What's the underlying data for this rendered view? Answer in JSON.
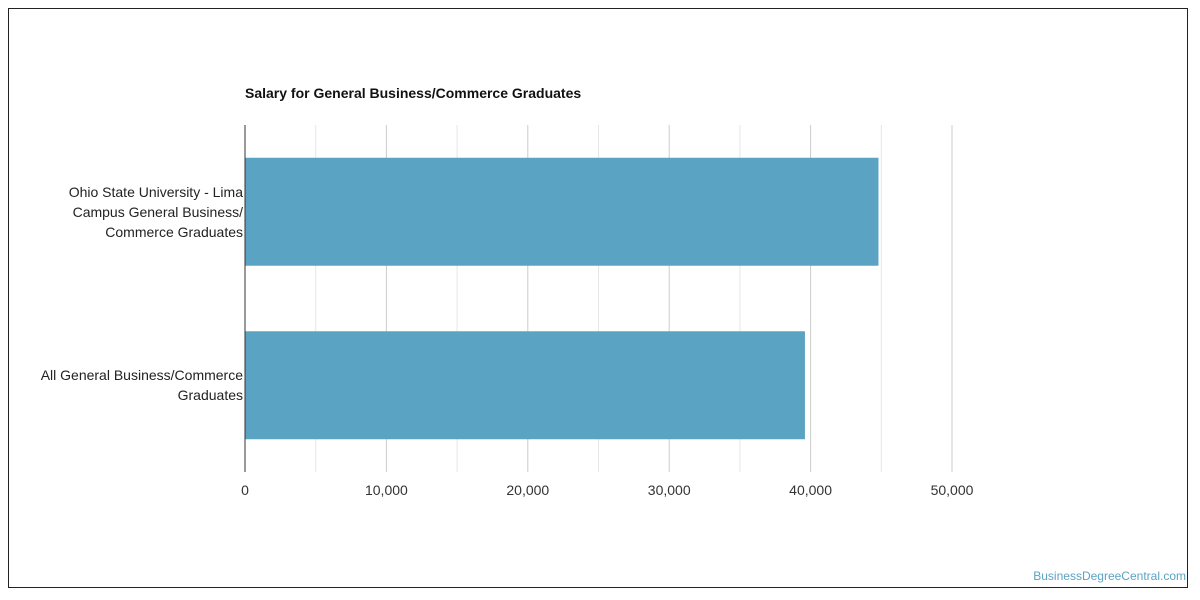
{
  "chart_data": {
    "type": "bar",
    "orientation": "horizontal",
    "title": "Salary for General Business/Commerce Graduates",
    "categories": [
      [
        "Ohio State University - Lima",
        "Campus General Business/",
        "Commerce Graduates"
      ],
      [
        "All General Business/Commerce",
        "Graduates"
      ]
    ],
    "values": [
      44800,
      39600
    ],
    "xlim": [
      0,
      50000
    ],
    "xticks": [
      0,
      10000,
      20000,
      30000,
      40000,
      50000
    ],
    "xtick_labels": [
      "0",
      "10,000",
      "20,000",
      "30,000",
      "40,000",
      "50,000"
    ],
    "xlabel": "",
    "ylabel": "",
    "grid": true,
    "legend": "none",
    "bar_color": "#5ba3c3"
  },
  "watermark": "BusinessDegreeCentral.com"
}
